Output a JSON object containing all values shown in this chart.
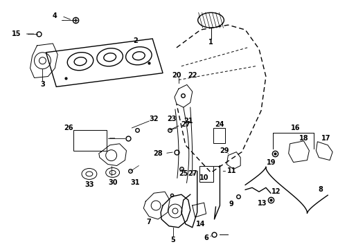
{
  "bg_color": "#ffffff",
  "fg_color": "#000000",
  "figsize": [
    4.89,
    3.6
  ],
  "dpi": 100
}
